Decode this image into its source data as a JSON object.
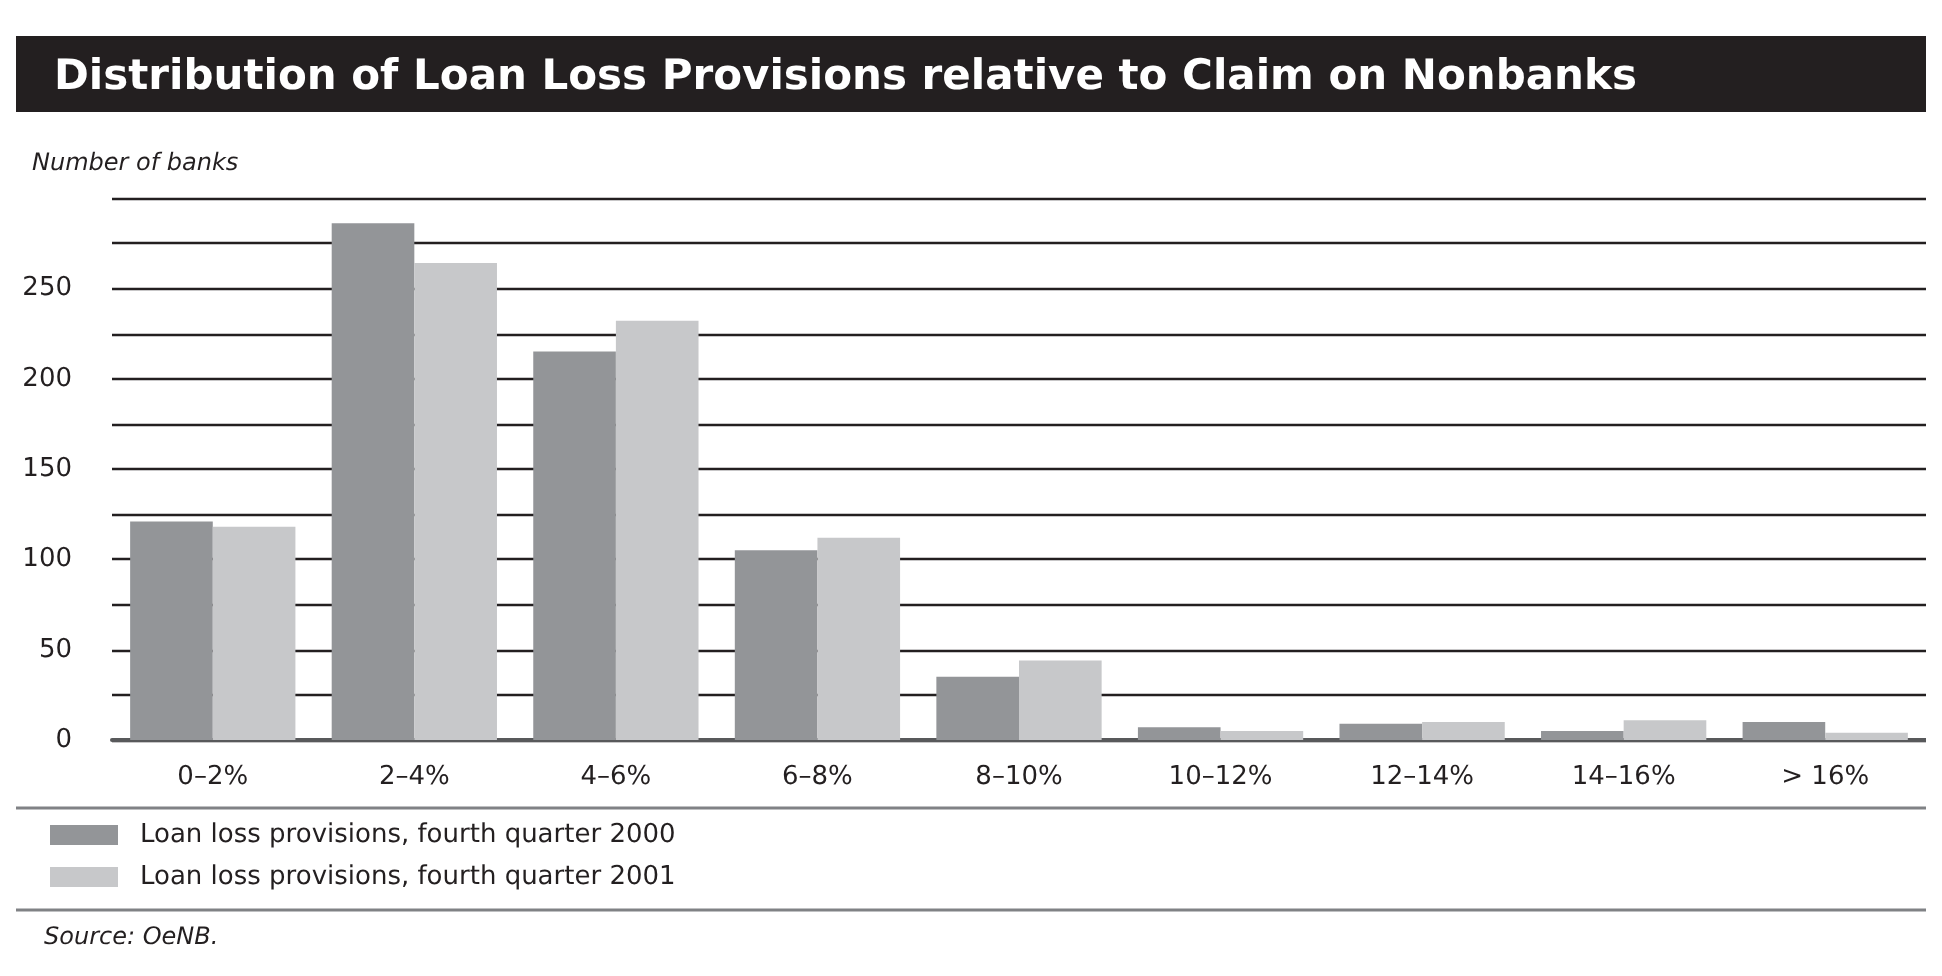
{
  "chart_data": {
    "type": "bar",
    "title": "Distribution of Loan Loss Provisions relative to Claim on Nonbanks",
    "ylabel": "Number of banks",
    "categories": [
      "0–2%",
      "2–4%",
      "4–6%",
      "6–8%",
      "8–10%",
      "10–12%",
      "12–14%",
      "14–16%",
      "> 16%"
    ],
    "series": [
      {
        "name": "Loan loss provisions, fourth quarter 2000",
        "color": "#939598",
        "values": [
          121,
          286,
          215,
          105,
          35,
          7,
          9,
          5,
          10
        ]
      },
      {
        "name": "Loan loss provisions, fourth quarter 2001",
        "color": "#c7c8ca",
        "values": [
          118,
          264,
          232,
          112,
          44,
          5,
          10,
          11,
          4
        ]
      }
    ],
    "ylim": [
      0,
      300
    ],
    "yticks": [
      0,
      {
        "value": 25,
        "label": null
      },
      50,
      {
        "value": 75,
        "label": null
      },
      100,
      {
        "value": 125,
        "label": null
      },
      150,
      {
        "value": 175,
        "label": null
      },
      200,
      {
        "value": 225,
        "label": null
      },
      250,
      {
        "value": 275,
        "label": null
      },
      {
        "value": 300,
        "label": null
      }
    ],
    "grid": "y",
    "legend": "bottom left",
    "annotations": [
      "Source: OeNB."
    ]
  }
}
